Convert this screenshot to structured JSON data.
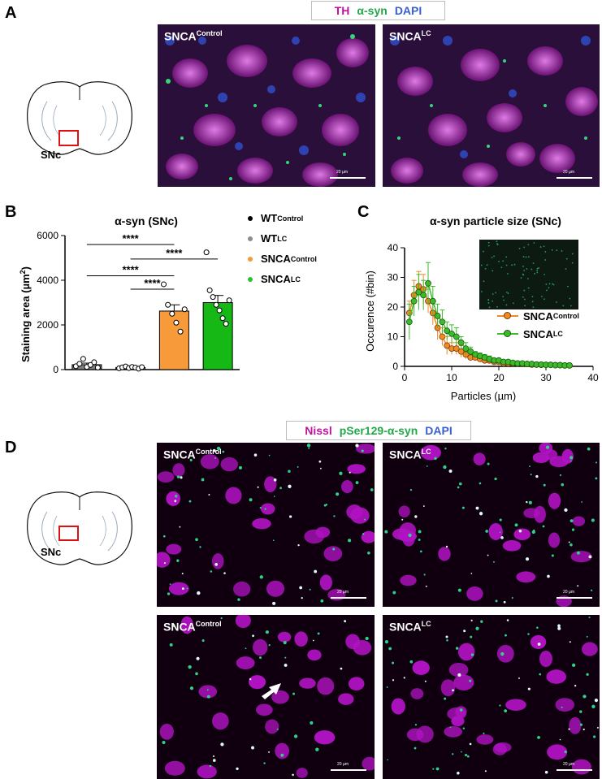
{
  "panelA": {
    "letter": "A",
    "legend": [
      {
        "text": "TH",
        "color": "#c2129f"
      },
      {
        "text": "α-syn",
        "color": "#23a84a"
      },
      {
        "text": "DAPI",
        "color": "#3a5fd0"
      }
    ],
    "brain_label": "SNc",
    "images": [
      {
        "label": "SNCA",
        "sup": "Control",
        "scale": "20 µm"
      },
      {
        "label": "SNCA",
        "sup": "LC",
        "scale": "20 µm"
      }
    ]
  },
  "panelB": {
    "letter": "B",
    "legend": [
      {
        "label": "WT",
        "sup": "Control",
        "color": "#000000"
      },
      {
        "label": "WT",
        "sup": "LC",
        "color": "#8c8c8c"
      },
      {
        "label": "SNCA",
        "sup": "Control",
        "color": "#f59a3a"
      },
      {
        "label": "SNCA",
        "sup": "LC",
        "color": "#2cc22c"
      }
    ],
    "significance": "****"
  },
  "panelC": {
    "letter": "C",
    "legend": [
      {
        "label": "SNCA",
        "sup": "Control",
        "color": "#f08a24"
      },
      {
        "label": "SNCA",
        "sup": "LC",
        "color": "#3cba2c"
      }
    ]
  },
  "panelD": {
    "letter": "D",
    "legend": [
      {
        "text": "Nissl",
        "color": "#c2129f"
      },
      {
        "text": "pSer129-α-syn",
        "color": "#23a84a"
      },
      {
        "text": "DAPI",
        "color": "#3a5fd0"
      }
    ],
    "brain_label": "SNc",
    "images": [
      {
        "label": "SNCA",
        "sup": "Control",
        "scale": "20 µm"
      },
      {
        "label": "SNCA",
        "sup": "LC",
        "scale": "20 µm"
      },
      {
        "label": "SNCA",
        "sup": "Control",
        "scale": "20 µm"
      },
      {
        "label": "SNCA",
        "sup": "LC",
        "scale": "20 µm"
      }
    ]
  },
  "chart_data": [
    {
      "type": "bar",
      "title": "α-syn (SNc)",
      "ylabel": "Staining area (µm²)",
      "ylim": [
        0,
        6000
      ],
      "yticks": [
        0,
        2000,
        4000,
        6000
      ],
      "categories": [
        "WT Control",
        "WT LC",
        "SNCA Control",
        "SNCA LC"
      ],
      "values": [
        220,
        90,
        2620,
        3000
      ],
      "errors": [
        70,
        20,
        280,
        320
      ],
      "bar_colors": [
        "#7f7f7f",
        "#bfbfbf",
        "#f79a3a",
        "#16b816"
      ],
      "points": [
        [
          150,
          260,
          480,
          120,
          210,
          330,
          90
        ],
        [
          60,
          100,
          140,
          70,
          120,
          90,
          40,
          110
        ],
        [
          3820,
          2900,
          2500,
          2100,
          1700,
          2700
        ],
        [
          5250,
          3550,
          3250,
          2900,
          2650,
          2300,
          2050,
          3100
        ]
      ],
      "comparisons": [
        {
          "from": 0,
          "to": 2,
          "level": 5600,
          "label": "****"
        },
        {
          "from": 1,
          "to": 3,
          "level": 4950,
          "label": "****"
        },
        {
          "from": 0,
          "to": 2,
          "level": 4200,
          "label": "****"
        },
        {
          "from": 1,
          "to": 2,
          "level": 3600,
          "label": "****"
        }
      ]
    },
    {
      "type": "scatter",
      "title": "α-syn particle size (SNc)",
      "xlabel": "Particles (µm)",
      "ylabel": "Occurence (#bin)",
      "xlim": [
        0,
        40
      ],
      "ylim": [
        0,
        40
      ],
      "xticks": [
        0,
        10,
        20,
        30,
        40
      ],
      "yticks": [
        0,
        10,
        20,
        30,
        40
      ],
      "series": [
        {
          "name": "SNCA Control",
          "color": "#f08a24",
          "x": [
            1,
            2,
            3,
            4,
            5,
            6,
            7,
            8,
            9,
            10,
            11,
            12,
            13,
            14,
            15,
            16,
            17,
            18,
            19,
            20,
            21,
            22,
            23,
            24,
            25,
            26,
            27,
            28,
            29,
            30,
            31,
            32,
            33,
            34,
            35
          ],
          "y": [
            18,
            24,
            27,
            26,
            22,
            18,
            13,
            10,
            7,
            6,
            6,
            5,
            4,
            3,
            3,
            2.5,
            2,
            2,
            1.5,
            1.5,
            1,
            1,
            1,
            1,
            0.8,
            0.8,
            0.6,
            0.6,
            0.5,
            0.5,
            0.5,
            0.4,
            0.4,
            0.3,
            0.3
          ],
          "err": [
            4,
            5,
            5,
            5,
            4,
            4,
            4,
            3,
            3,
            2,
            2,
            2,
            1.5,
            1,
            1,
            1,
            1,
            0.5,
            0.5,
            0.5,
            0.5,
            0.5,
            0.5,
            0.5,
            0.3,
            0.3,
            0.3,
            0.3,
            0.3,
            0.3,
            0.3,
            0.2,
            0.2,
            0.2,
            0.2
          ]
        },
        {
          "name": "SNCA LC",
          "color": "#3cba2c",
          "x": [
            1,
            2,
            3,
            4,
            5,
            6,
            7,
            8,
            9,
            10,
            11,
            12,
            13,
            14,
            15,
            16,
            17,
            18,
            19,
            20,
            21,
            22,
            23,
            24,
            25,
            26,
            27,
            28,
            29,
            30,
            31,
            32,
            33,
            34,
            35
          ],
          "y": [
            15,
            22,
            25,
            24,
            28,
            22,
            17,
            15,
            12,
            11,
            10,
            8,
            6,
            5,
            4,
            3.5,
            3,
            2.5,
            2,
            2,
            1.5,
            1.5,
            1.2,
            1,
            1,
            0.8,
            0.8,
            0.6,
            0.6,
            0.5,
            0.5,
            0.4,
            0.4,
            0.3,
            0.3
          ],
          "err": [
            6,
            5,
            6,
            5,
            7,
            5,
            4,
            4,
            3,
            3,
            3,
            2,
            2,
            1.5,
            1,
            1,
            1,
            1,
            0.5,
            0.5,
            0.5,
            0.5,
            0.5,
            0.3,
            0.3,
            0.3,
            0.3,
            0.3,
            0.3,
            0.3,
            0.3,
            0.2,
            0.2,
            0.2,
            0.2
          ]
        }
      ]
    }
  ]
}
